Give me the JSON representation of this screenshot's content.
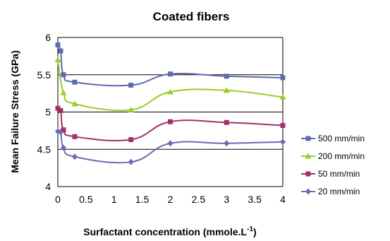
{
  "chart_data": {
    "type": "line",
    "title": "Coated fibers",
    "xlabel": "Surfactant concentration (mmole.L",
    "xlabel_sup": "-1",
    "xlabel_close": ")",
    "ylabel": "Mean Failure Stress (GPa)",
    "xlim": [
      0,
      4
    ],
    "ylim": [
      4,
      6
    ],
    "x_ticks": [
      "0",
      "0.5",
      "1",
      "1.5",
      "2",
      "2.5",
      "3",
      "3.5",
      "4"
    ],
    "y_ticks": [
      "4",
      "4.5",
      "5",
      "5.5",
      "6"
    ],
    "grid": "horizontal",
    "legend_position": "right",
    "series": [
      {
        "name": "500 mm/min",
        "color": "#5b6bb0",
        "marker": "square",
        "x": [
          0,
          0.05,
          0.1,
          0.3,
          1.3,
          2,
          3,
          4
        ],
        "y": [
          5.9,
          5.82,
          5.5,
          5.4,
          5.36,
          5.51,
          5.48,
          5.46
        ]
      },
      {
        "name": "200 mm/min",
        "color": "#9acd2a",
        "marker": "triangle",
        "x": [
          0,
          0.1,
          0.3,
          1.3,
          2,
          3,
          4
        ],
        "y": [
          5.7,
          5.26,
          5.11,
          5.03,
          5.27,
          5.29,
          5.2
        ]
      },
      {
        "name": "50 mm/min",
        "color": "#a4306b",
        "marker": "square",
        "x": [
          0,
          0.05,
          0.1,
          0.3,
          1.3,
          2,
          3,
          4
        ],
        "y": [
          5.05,
          5.02,
          4.76,
          4.67,
          4.63,
          4.87,
          4.86,
          4.82
        ]
      },
      {
        "name": "20 mm/min",
        "color": "#6b6bb5",
        "marker": "diamond",
        "x": [
          0,
          0.05,
          0.1,
          0.3,
          1.3,
          2,
          3,
          4
        ],
        "y": [
          4.74,
          4.73,
          4.52,
          4.4,
          4.33,
          4.58,
          4.58,
          4.6
        ]
      }
    ]
  }
}
